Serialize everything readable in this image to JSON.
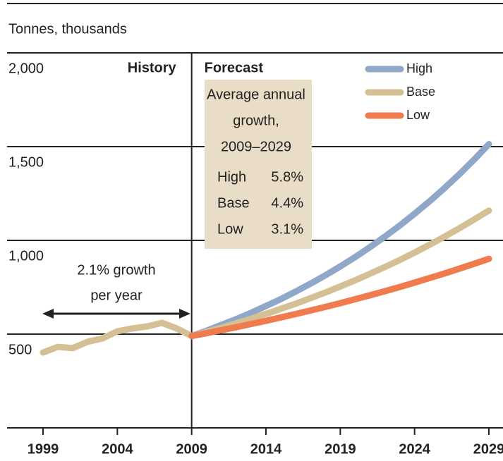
{
  "chart_data": {
    "type": "line",
    "y_axis_label": "Tonnes, thousands",
    "x": [
      1999,
      2000,
      2001,
      2002,
      2003,
      2004,
      2005,
      2006,
      2007,
      2008,
      2009,
      2010,
      2011,
      2012,
      2013,
      2014,
      2015,
      2016,
      2017,
      2018,
      2019,
      2020,
      2021,
      2022,
      2023,
      2024,
      2025,
      2026,
      2027,
      2028,
      2029
    ],
    "series": [
      {
        "name": "High",
        "color": "#8fa7c9",
        "values": [
          null,
          null,
          null,
          null,
          null,
          null,
          null,
          null,
          null,
          null,
          490,
          518,
          549,
          580,
          614,
          650,
          687,
          727,
          769,
          814,
          861,
          911,
          964,
          1020,
          1079,
          1142,
          1208,
          1278,
          1352,
          1430,
          1513
        ]
      },
      {
        "name": "Base",
        "color": "#d5c095",
        "values": [
          402,
          432,
          425,
          459,
          477,
          515,
          530,
          541,
          560,
          530,
          490,
          512,
          534,
          558,
          582,
          608,
          635,
          662,
          692,
          722,
          754,
          787,
          822,
          858,
          895,
          935,
          976,
          1019,
          1064,
          1111,
          1159
        ]
      },
      {
        "name": "Low",
        "color": "#f07b4f",
        "values": [
          null,
          null,
          null,
          null,
          null,
          null,
          null,
          null,
          null,
          null,
          490,
          505,
          521,
          537,
          554,
          571,
          589,
          607,
          626,
          645,
          665,
          686,
          707,
          729,
          751,
          775,
          799,
          823,
          849,
          875,
          902
        ]
      }
    ],
    "xlim": [
      1999,
      2029
    ],
    "xticks": [
      1999,
      2004,
      2009,
      2014,
      2019,
      2024,
      2029
    ],
    "ylim": [
      0,
      2000
    ],
    "yticks": [
      {
        "value": 500,
        "label": "500"
      },
      {
        "value": 1000,
        "label": "1,000"
      },
      {
        "value": 1500,
        "label": "1,500"
      },
      {
        "value": 2000,
        "label": "2,000"
      }
    ],
    "grid": true,
    "legend_position": "top-right",
    "divider": {
      "value": 2009,
      "left_label": "History",
      "right_label": "Forecast"
    },
    "growth_box": {
      "title": [
        "Average annual",
        "growth,",
        "2009–2029"
      ],
      "rows": [
        [
          "High",
          "5.8%"
        ],
        [
          "Base",
          "4.4%"
        ],
        [
          "Low",
          "3.1%"
        ]
      ]
    },
    "history_annotation": [
      "2.1% growth",
      "per year"
    ]
  }
}
